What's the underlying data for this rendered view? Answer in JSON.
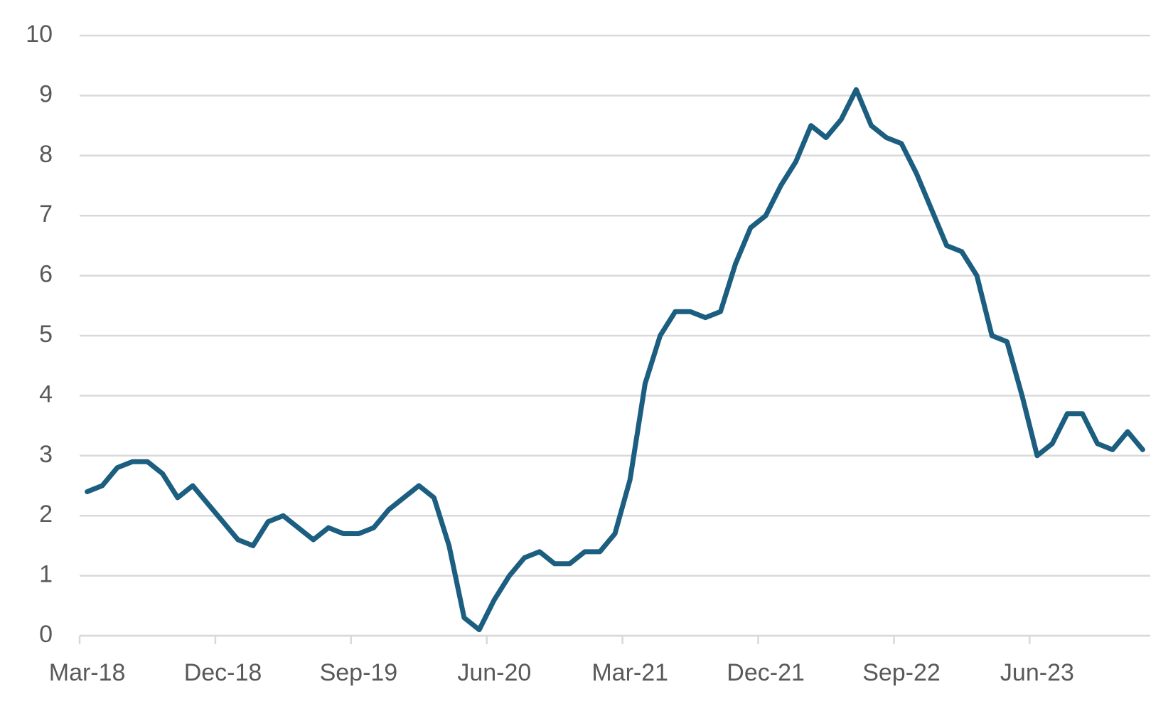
{
  "chart_data": {
    "type": "line",
    "categories": [
      "Mar-18",
      null,
      null,
      null,
      null,
      null,
      null,
      null,
      null,
      "Dec-18",
      null,
      null,
      null,
      null,
      null,
      null,
      null,
      null,
      "Sep-19",
      null,
      null,
      null,
      null,
      null,
      null,
      null,
      null,
      "Jun-20",
      null,
      null,
      null,
      null,
      null,
      null,
      null,
      null,
      "Mar-21",
      null,
      null,
      null,
      null,
      null,
      null,
      null,
      null,
      "Dec-21",
      null,
      null,
      null,
      null,
      null,
      null,
      null,
      null,
      "Sep-22",
      null,
      null,
      null,
      null,
      null,
      null,
      null,
      null,
      "Jun-23",
      null,
      null,
      null,
      null,
      null,
      null,
      null
    ],
    "series": [
      {
        "color": "#1b5e80",
        "values": [
          2.4,
          2.5,
          2.8,
          2.9,
          2.9,
          2.7,
          2.3,
          2.5,
          2.2,
          1.9,
          1.6,
          1.5,
          1.9,
          2.0,
          1.8,
          1.6,
          1.8,
          1.7,
          1.7,
          1.8,
          2.1,
          2.3,
          2.5,
          2.3,
          1.5,
          0.3,
          0.1,
          0.6,
          1.0,
          1.3,
          1.4,
          1.2,
          1.2,
          1.4,
          1.4,
          1.7,
          2.6,
          4.2,
          5.0,
          5.4,
          5.4,
          5.3,
          5.4,
          6.2,
          6.8,
          7.0,
          7.5,
          7.9,
          8.5,
          8.3,
          8.6,
          9.1,
          8.5,
          8.3,
          8.2,
          7.7,
          7.1,
          6.5,
          6.4,
          6.0,
          5.0,
          4.9,
          4.0,
          3.0,
          3.2,
          3.7,
          3.7,
          3.2,
          3.1,
          3.4,
          3.1
        ]
      }
    ],
    "ylim": [
      0,
      10
    ],
    "yticks": [
      0,
      1,
      2,
      3,
      4,
      5,
      6,
      7,
      8,
      9,
      10
    ],
    "grid": true
  }
}
